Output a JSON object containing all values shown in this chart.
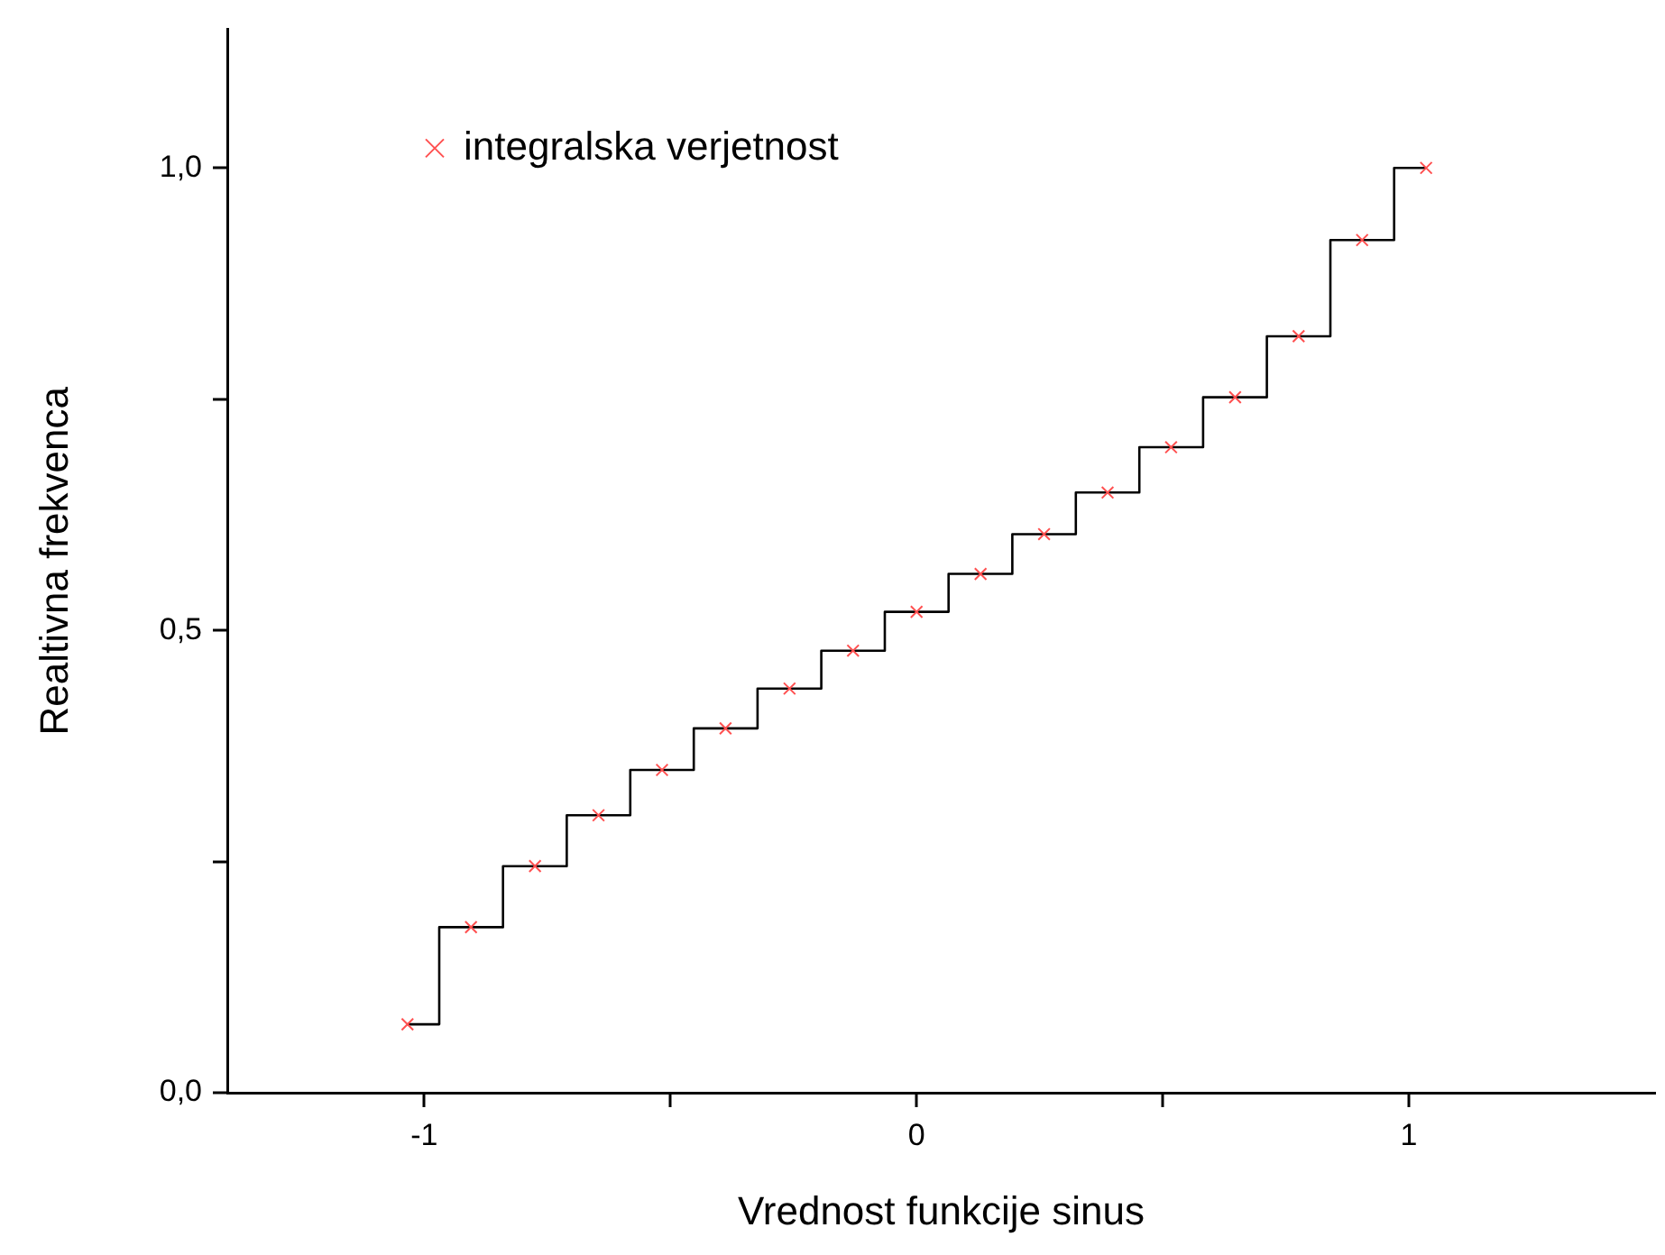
{
  "chart_data": {
    "type": "step",
    "xlabel": "Vrednost funkcije sinus",
    "ylabel": "Realtivna frekvenca",
    "x": [
      -1.034,
      -0.905,
      -0.775,
      -0.646,
      -0.517,
      -0.388,
      -0.258,
      -0.129,
      0.0,
      0.13,
      0.259,
      0.388,
      0.517,
      0.647,
      0.776,
      0.905,
      1.035
    ],
    "series": [
      {
        "name": "integralska verjetnost",
        "color": "#000000",
        "colors": [
          "#ff5050",
          "#ff5050",
          "#ff5050",
          "#ff5050",
          "#ff5050",
          "#ff5050",
          "#ff5050",
          "#ff5050",
          "#ff5050",
          "#ff5050",
          "#ff5050",
          "#ff5050",
          "#ff5050",
          "#ff5050",
          "#ff5050",
          "#ff5050",
          "#ff5050"
        ],
        "values": [
          0.074,
          0.179,
          0.245,
          0.3,
          0.349,
          0.394,
          0.437,
          0.478,
          0.52,
          0.561,
          0.604,
          0.649,
          0.698,
          0.752,
          0.818,
          0.922,
          1.0
        ]
      }
    ],
    "xlim": [
      -1.4,
      1.5
    ],
    "ylim": [
      0,
      1.15
    ],
    "xticks": [
      -1,
      {
        "value": -0.5,
        "label": null
      },
      0,
      {
        "value": 0.5,
        "label": null
      },
      1
    ],
    "yticks": [
      {
        "value": 0,
        "label": "0,0"
      },
      {
        "value": 0.25,
        "label": null
      },
      {
        "value": 0.5,
        "label": "0,5"
      },
      {
        "value": 0.75,
        "label": null
      },
      {
        "value": 1,
        "label": "1,0"
      }
    ],
    "grid": false,
    "legend": "top left",
    "marker": "cross"
  }
}
